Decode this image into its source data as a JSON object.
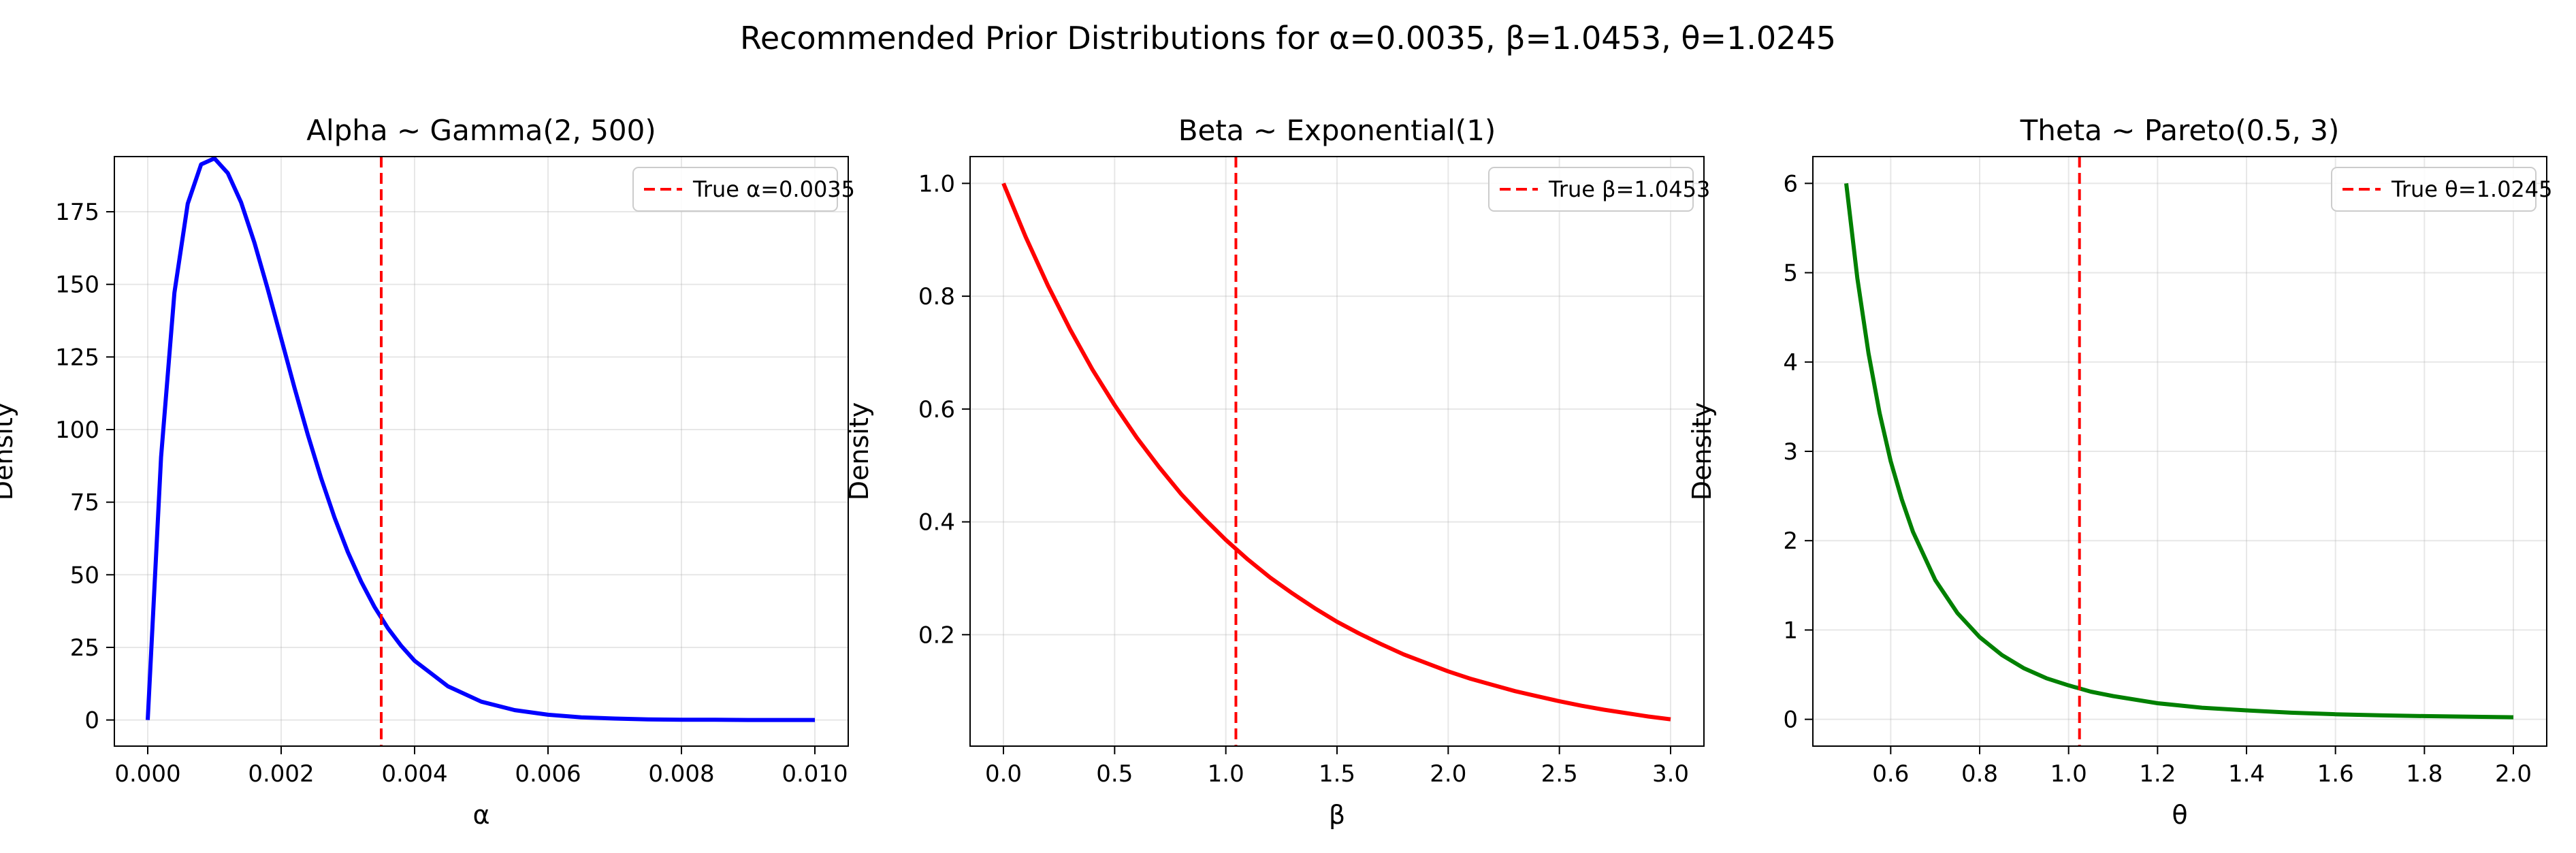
{
  "suptitle": "Recommended Prior Distributions for α=0.0035, β=1.0453, θ=1.0245",
  "chart_data": [
    {
      "type": "line",
      "title": "Alpha ~ Gamma(2, 500)",
      "xlabel": "α",
      "ylabel": "Density",
      "xlim": [
        -0.0005,
        0.0105
      ],
      "ylim": [
        -9,
        194
      ],
      "xticks": [
        0,
        0.002,
        0.004,
        0.006,
        0.008,
        0.01
      ],
      "xtick_labels": [
        "0.000",
        "0.002",
        "0.004",
        "0.006",
        "0.008",
        "0.010"
      ],
      "yticks": [
        0,
        25,
        50,
        75,
        100,
        125,
        150,
        175
      ],
      "ytick_labels": [
        "0",
        "25",
        "50",
        "75",
        "100",
        "125",
        "150",
        "175"
      ],
      "grid": true,
      "legend_position": "top-right",
      "series": [
        {
          "name": "",
          "color": "#0000ff",
          "x": [
            0,
            0.0002,
            0.0004,
            0.0006,
            0.0008,
            0.001,
            0.0012,
            0.0014,
            0.0016,
            0.0018,
            0.002,
            0.0022,
            0.0024,
            0.0026,
            0.0028,
            0.003,
            0.0032,
            0.0034,
            0.0036,
            0.0038,
            0.004,
            0.0045,
            0.005,
            0.0055,
            0.006,
            0.0065,
            0.007,
            0.0075,
            0.008,
            0.0085,
            0.009,
            0.0095,
            0.01
          ],
          "y": [
            0,
            90.5,
            147.1,
            177.8,
            191.3,
            193.4,
            188.3,
            178.2,
            164.3,
            148.3,
            131.4,
            114.4,
            98.2,
            83.2,
            69.7,
            57.8,
            47.6,
            38.9,
            31.6,
            25.5,
            20.4,
            11.6,
            6.3,
            3.4,
            1.8,
            0.9,
            0.5,
            0.2,
            0.1,
            0.1,
            0,
            0,
            0
          ]
        },
        {
          "name": "True α=0.0035",
          "color": "#ff0000",
          "style": "dashed",
          "x_value": 0.0035
        }
      ]
    },
    {
      "type": "line",
      "title": "Beta ~ Exponential(1)",
      "xlabel": "β",
      "ylabel": "Density",
      "xlim": [
        -0.15,
        3.15
      ],
      "ylim": [
        0.0025,
        1.0475
      ],
      "xticks": [
        0,
        0.5,
        1,
        1.5,
        2,
        2.5,
        3
      ],
      "xtick_labels": [
        "0.0",
        "0.5",
        "1.0",
        "1.5",
        "2.0",
        "2.5",
        "3.0"
      ],
      "yticks": [
        0.2,
        0.4,
        0.6,
        0.8,
        1.0
      ],
      "ytick_labels": [
        "0.2",
        "0.4",
        "0.6",
        "0.8",
        "1.0"
      ],
      "grid": true,
      "legend_position": "top-right",
      "series": [
        {
          "name": "",
          "color": "#ff0000",
          "x": [
            0,
            0.1,
            0.2,
            0.3,
            0.4,
            0.5,
            0.6,
            0.7,
            0.8,
            0.9,
            1.0,
            1.1,
            1.2,
            1.3,
            1.4,
            1.5,
            1.6,
            1.7,
            1.8,
            1.9,
            2.0,
            2.1,
            2.2,
            2.3,
            2.4,
            2.5,
            2.6,
            2.7,
            2.8,
            2.9,
            3.0
          ],
          "y": [
            1.0,
            0.905,
            0.819,
            0.741,
            0.67,
            0.607,
            0.549,
            0.497,
            0.449,
            0.407,
            0.368,
            0.333,
            0.301,
            0.273,
            0.247,
            0.223,
            0.202,
            0.183,
            0.165,
            0.15,
            0.135,
            0.122,
            0.111,
            0.1,
            0.091,
            0.082,
            0.074,
            0.067,
            0.061,
            0.055,
            0.05
          ]
        },
        {
          "name": "True β=1.0453",
          "color": "#ff0000",
          "style": "dashed",
          "x_value": 1.0453
        }
      ]
    },
    {
      "type": "line",
      "title": "Theta ~ Pareto(0.5, 3)",
      "xlabel": "θ",
      "ylabel": "Density",
      "xlim": [
        0.425,
        2.075
      ],
      "ylim": [
        -0.3,
        6.3
      ],
      "xticks": [
        0.6,
        0.8,
        1.0,
        1.2,
        1.4,
        1.6,
        1.8,
        2.0
      ],
      "xtick_labels": [
        "0.6",
        "0.8",
        "1.0",
        "1.2",
        "1.4",
        "1.6",
        "1.8",
        "2.0"
      ],
      "yticks": [
        0,
        1,
        2,
        3,
        4,
        5,
        6
      ],
      "ytick_labels": [
        "0",
        "1",
        "2",
        "3",
        "4",
        "5",
        "6"
      ],
      "grid": true,
      "legend_position": "top-right",
      "series": [
        {
          "name": "",
          "color": "#008000",
          "x": [
            0.5,
            0.525,
            0.55,
            0.575,
            0.6,
            0.625,
            0.65,
            0.7,
            0.75,
            0.8,
            0.85,
            0.9,
            0.95,
            1.0,
            1.05,
            1.1,
            1.2,
            1.3,
            1.4,
            1.5,
            1.6,
            1.7,
            1.8,
            1.9,
            2.0
          ],
          "y": [
            6.0,
            4.94,
            4.1,
            3.43,
            2.89,
            2.46,
            2.1,
            1.56,
            1.19,
            0.92,
            0.72,
            0.57,
            0.46,
            0.38,
            0.31,
            0.26,
            0.18,
            0.13,
            0.1,
            0.074,
            0.057,
            0.045,
            0.036,
            0.029,
            0.023
          ]
        },
        {
          "name": "True θ=1.0245",
          "color": "#ff0000",
          "style": "dashed",
          "x_value": 1.0245
        }
      ]
    }
  ]
}
